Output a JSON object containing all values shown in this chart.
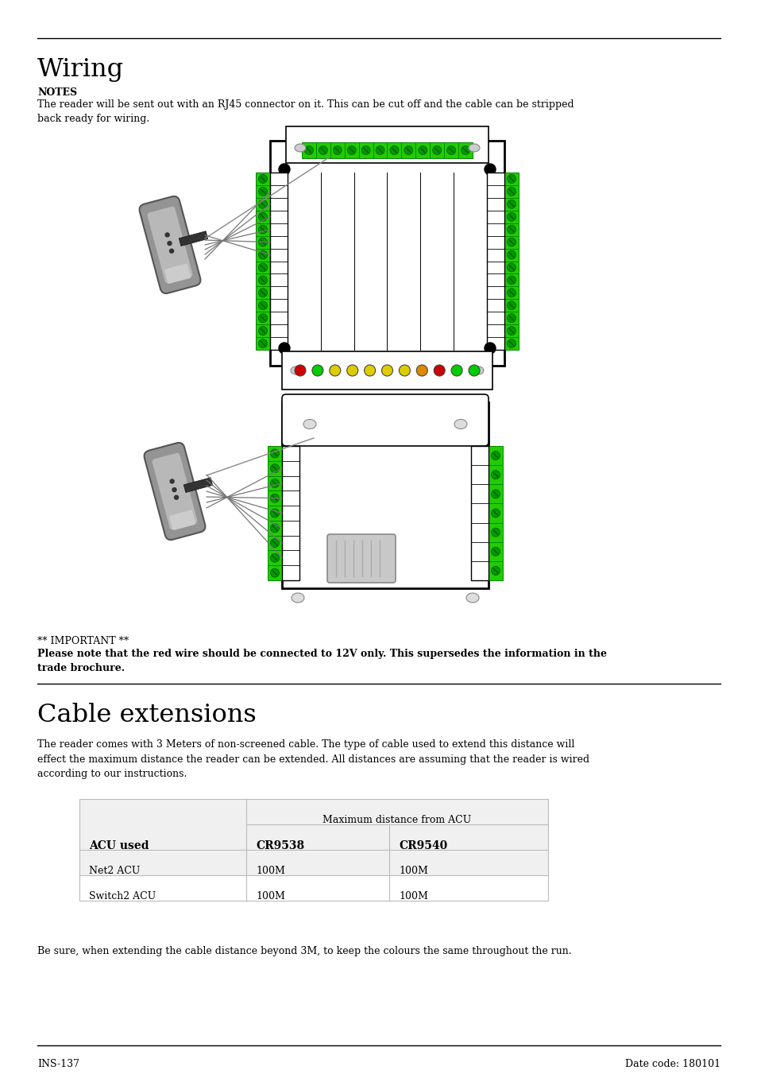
{
  "title_wiring": "Wiring",
  "title_cable": "Cable extensions",
  "notes_label": "NOTES",
  "notes_text": "The reader will be sent out with an RJ45 connector on it. This can be cut off and the cable can be stripped\nback ready for wiring.",
  "important_text1": "** IMPORTANT **",
  "important_text2_bold": "Please note that the red wire should be connected to 12V only. This supersedes the information in the\ntrade brochure.",
  "cable_para": "The reader comes with 3 Meters of non-screened cable. The type of cable used to extend this distance will\neffect the maximum distance the reader can be extended. All distances are assuming that the reader is wired\naccording to our instructions.",
  "table_header_col0": "ACU used",
  "table_header_span": "Maximum distance from ACU",
  "table_col1": "CR9538",
  "table_col2": "CR9540",
  "table_rows": [
    [
      "Net2 ACU",
      "100M",
      "100M"
    ],
    [
      "Switch2 ACU",
      "100M",
      "100M"
    ]
  ],
  "footer_left": "INS-137",
  "footer_right": "Date code: 180101",
  "bg_color": "#ffffff",
  "text_color": "#000000",
  "table_bg": "#f0f0f0",
  "green_color": "#22cc00",
  "green_dark": "#008800",
  "gray_light": "#aaaaaa",
  "gray_mid": "#888888",
  "gray_reader_body": "#999999",
  "gray_reader_dark": "#666666"
}
